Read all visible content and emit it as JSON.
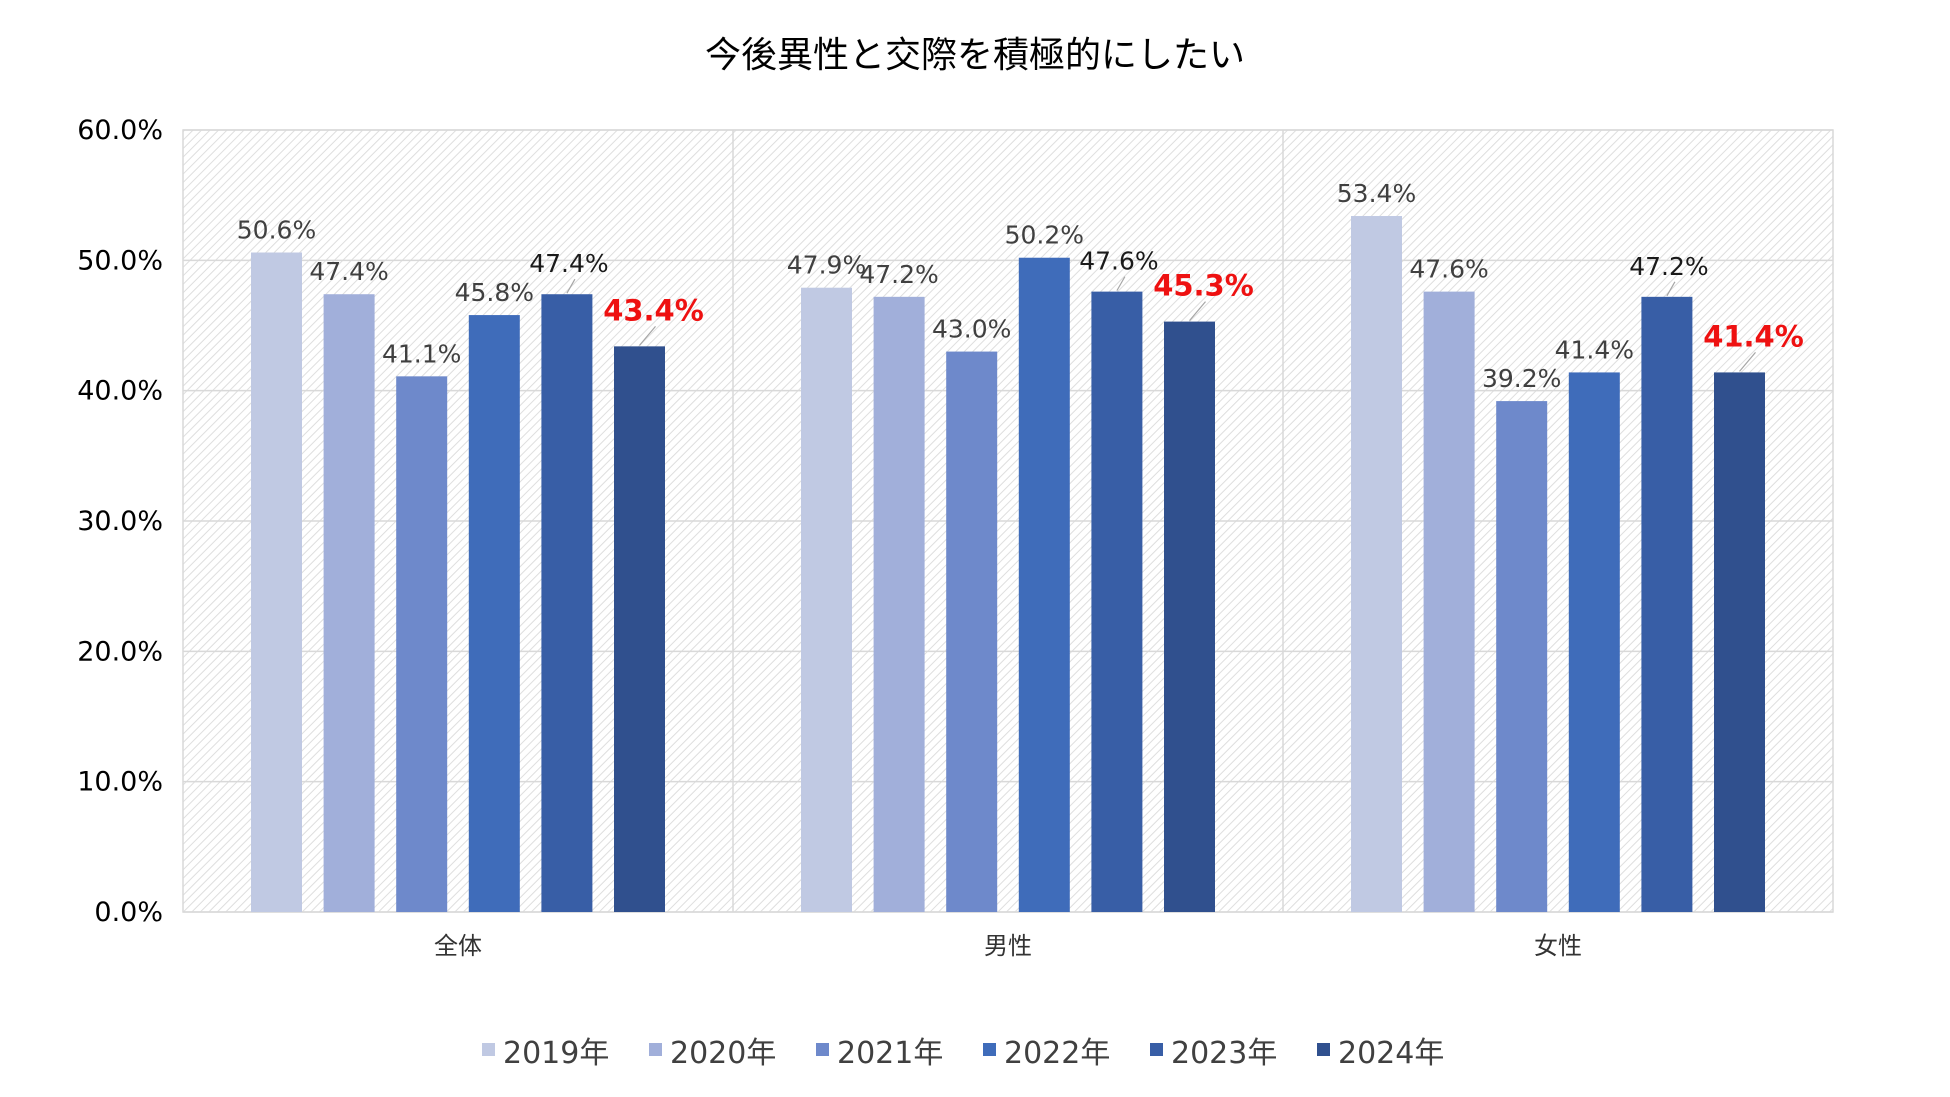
{
  "chart_data": {
    "type": "bar",
    "title": "今後異性と交際を積極的にしたい",
    "xlabel": "",
    "ylabel": "",
    "ylim": [
      0,
      60
    ],
    "yticks": [
      "0.0%",
      "10.0%",
      "20.0%",
      "30.0%",
      "40.0%",
      "50.0%",
      "60.0%"
    ],
    "grid": true,
    "legend_position": "bottom",
    "categories": [
      "全体",
      "男性",
      "女性"
    ],
    "series": [
      {
        "name": "2019年",
        "color": "#c0c9e3",
        "values": [
          50.6,
          47.9,
          53.4
        ],
        "labels": [
          "50.6%",
          "47.9%",
          "53.4%"
        ]
      },
      {
        "name": "2020年",
        "color": "#a1afda",
        "values": [
          47.4,
          47.2,
          47.6
        ],
        "labels": [
          "47.4%",
          "47.2%",
          "47.6%"
        ]
      },
      {
        "name": "2021年",
        "color": "#6e89cb",
        "values": [
          41.1,
          43.0,
          39.2
        ],
        "labels": [
          "41.1%",
          "43.0%",
          "39.2%"
        ]
      },
      {
        "name": "2022年",
        "color": "#3f6cba",
        "values": [
          45.8,
          50.2,
          41.4
        ],
        "labels": [
          "45.8%",
          "50.2%",
          "41.4%"
        ]
      },
      {
        "name": "2023年",
        "color": "#385ea6",
        "values": [
          47.4,
          47.6,
          47.2
        ],
        "labels": [
          "47.4%",
          "47.6%",
          "47.2%"
        ]
      },
      {
        "name": "2024年",
        "color": "#30508e",
        "values": [
          43.4,
          45.3,
          41.4
        ],
        "labels": [
          "43.4%",
          "45.3%",
          "41.4%"
        ]
      }
    ],
    "highlight_color": "#ee1111"
  }
}
